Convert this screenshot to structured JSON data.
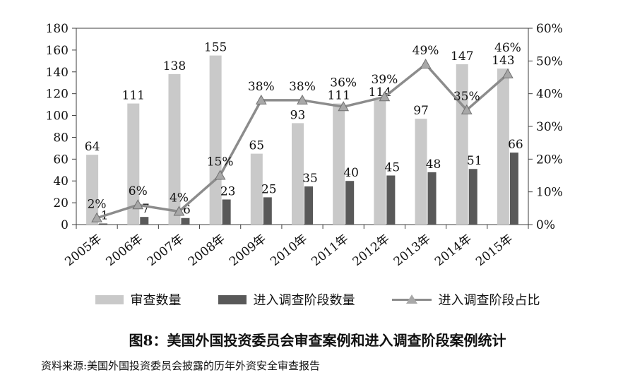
{
  "figure": {
    "title": "图8：美国外国投资委员会审查案例和进入调查阶段案例统计",
    "source": "资料来源:美国外国投资委员会披露的历年外资安全审查报告"
  },
  "chart_data": {
    "type": "bar",
    "subtype": "bar+line combo, dual axis",
    "categories": [
      "2005年",
      "2006年",
      "2007年",
      "2008年",
      "2009年",
      "2010年",
      "2011年",
      "2012年",
      "2013年",
      "2014年",
      "2015年"
    ],
    "series": [
      {
        "name": "审查数量",
        "type": "bar",
        "axis": "left",
        "values": [
          64,
          111,
          138,
          155,
          65,
          93,
          111,
          114,
          97,
          147,
          143
        ],
        "color": "#c9c9c9"
      },
      {
        "name": "进入调查阶段数量",
        "type": "bar",
        "axis": "left",
        "values": [
          1,
          7,
          6,
          23,
          25,
          35,
          40,
          45,
          48,
          51,
          66
        ],
        "color": "#595959"
      },
      {
        "name": "进入调查阶段占比",
        "type": "line",
        "axis": "right",
        "values_percent": [
          2,
          6,
          4,
          15,
          38,
          38,
          36,
          39,
          49,
          35,
          46
        ],
        "labels": [
          "2%",
          "6%",
          "4%",
          "15%",
          "38%",
          "38%",
          "36%",
          "39%",
          "49%",
          "35%",
          "46%"
        ],
        "color": "#8c8c8c",
        "marker": "triangle",
        "marker_fill": "#a8a8a8",
        "marker_stroke": "#707070"
      }
    ],
    "left_axis": {
      "min": 0,
      "max": 180,
      "step": 20,
      "ticks": [
        "0",
        "20",
        "40",
        "60",
        "80",
        "100",
        "120",
        "140",
        "160",
        "180"
      ]
    },
    "right_axis": {
      "min": 0,
      "max": 60,
      "step": 10,
      "ticks": [
        "0%",
        "10%",
        "20%",
        "30%",
        "40%",
        "50%",
        "60%"
      ]
    },
    "grid": false,
    "legend_position": "bottom",
    "axis_color": "#3f3f3f"
  }
}
